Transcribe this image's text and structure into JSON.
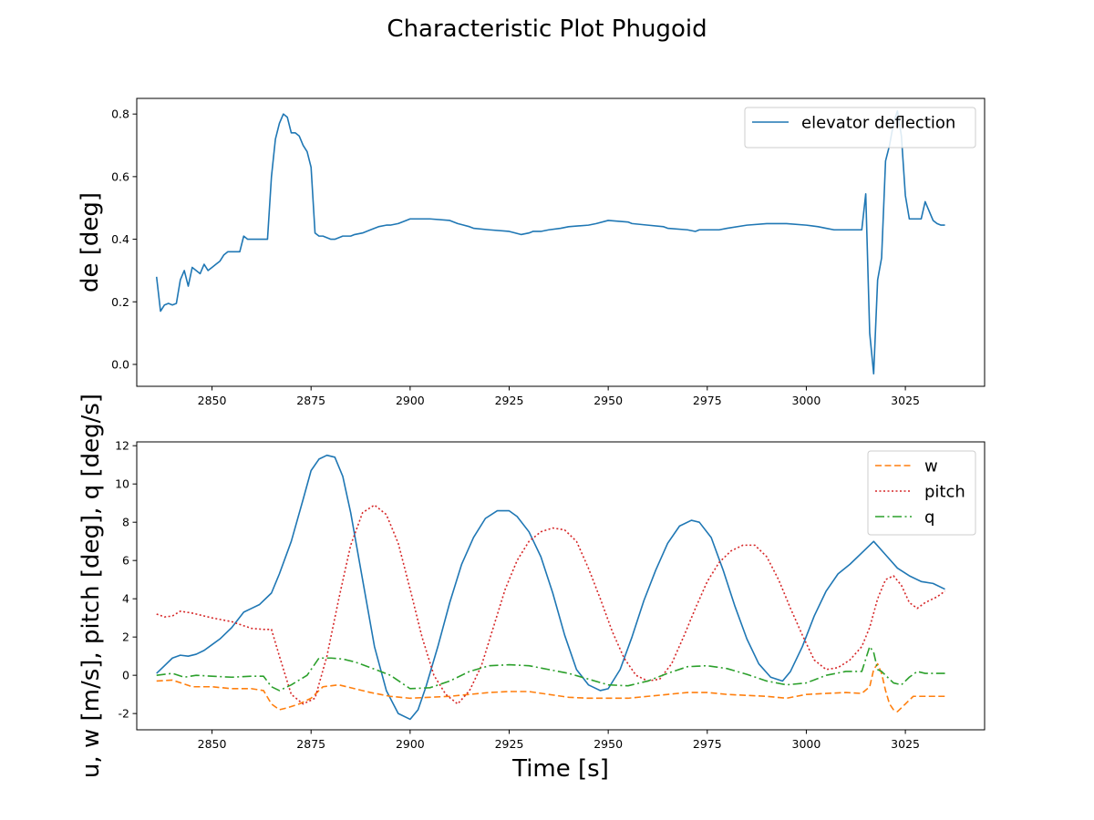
{
  "figure_title": "Characteristic Plot Phugoid",
  "chart_data": [
    {
      "type": "line",
      "title": "",
      "xlabel": "",
      "ylabel": "de [deg]",
      "xlim": [
        2831,
        3045
      ],
      "ylim": [
        -0.07,
        0.85
      ],
      "xticks": [
        2850,
        2875,
        2900,
        2925,
        2950,
        2975,
        3000,
        3025
      ],
      "yticks": [
        0.0,
        0.2,
        0.4,
        0.6,
        0.8
      ],
      "grid": false,
      "legend_position": "top-right",
      "series": [
        {
          "name": "elevator deflection",
          "color": "#1f77b4",
          "style": "solid",
          "x": [
            2836,
            2837,
            2838,
            2839,
            2840,
            2841,
            2842,
            2843,
            2844,
            2845,
            2847,
            2848,
            2849,
            2850,
            2851,
            2852,
            2853,
            2854,
            2855,
            2856,
            2857,
            2858,
            2859,
            2860,
            2861,
            2862,
            2863,
            2864,
            2865,
            2866,
            2867,
            2868,
            2869,
            2870,
            2871,
            2872,
            2873,
            2874,
            2875,
            2876,
            2877,
            2878,
            2879,
            2880,
            2881,
            2882,
            2883,
            2884,
            2885,
            2886,
            2888,
            2890,
            2892,
            2894,
            2895,
            2897,
            2899,
            2900,
            2905,
            2910,
            2912,
            2915,
            2916,
            2920,
            2925,
            2928,
            2930,
            2931,
            2933,
            2935,
            2938,
            2940,
            2945,
            2947,
            2950,
            2955,
            2956,
            2960,
            2964,
            2965,
            2970,
            2972,
            2973,
            2975,
            2977,
            2978,
            2980,
            2985,
            2990,
            2995,
            3000,
            3003,
            3005,
            3007,
            3010,
            3012,
            3014,
            3015,
            3016,
            3017,
            3018,
            3019,
            3020,
            3021,
            3022,
            3023,
            3024,
            3025,
            3026,
            3027,
            3028,
            3029,
            3030,
            3031,
            3032,
            3033,
            3034,
            3035
          ],
          "y": [
            0.28,
            0.17,
            0.19,
            0.195,
            0.19,
            0.195,
            0.27,
            0.3,
            0.25,
            0.31,
            0.29,
            0.32,
            0.3,
            0.31,
            0.32,
            0.33,
            0.35,
            0.36,
            0.36,
            0.36,
            0.36,
            0.41,
            0.4,
            0.4,
            0.4,
            0.4,
            0.4,
            0.4,
            0.6,
            0.72,
            0.77,
            0.8,
            0.79,
            0.74,
            0.74,
            0.73,
            0.7,
            0.68,
            0.63,
            0.42,
            0.41,
            0.41,
            0.405,
            0.4,
            0.4,
            0.405,
            0.41,
            0.41,
            0.41,
            0.415,
            0.42,
            0.43,
            0.44,
            0.445,
            0.445,
            0.45,
            0.46,
            0.465,
            0.465,
            0.46,
            0.45,
            0.44,
            0.435,
            0.43,
            0.425,
            0.415,
            0.42,
            0.425,
            0.425,
            0.43,
            0.435,
            0.44,
            0.445,
            0.45,
            0.46,
            0.455,
            0.45,
            0.445,
            0.44,
            0.435,
            0.43,
            0.425,
            0.43,
            0.43,
            0.43,
            0.43,
            0.435,
            0.445,
            0.45,
            0.45,
            0.445,
            0.44,
            0.435,
            0.43,
            0.43,
            0.43,
            0.43,
            0.545,
            0.1,
            -0.03,
            0.27,
            0.34,
            0.65,
            0.7,
            0.77,
            0.81,
            0.73,
            0.54,
            0.465,
            0.465,
            0.465,
            0.465,
            0.52,
            0.49,
            0.46,
            0.45,
            0.445,
            0.445
          ]
        }
      ]
    },
    {
      "type": "line",
      "title": "",
      "xlabel": "Time [s]",
      "ylabel": "u, w [m/s], pitch [deg], q [deg/s]",
      "xlim": [
        2831,
        3045
      ],
      "ylim": [
        -2.85,
        12.2
      ],
      "xticks": [
        2850,
        2875,
        2900,
        2925,
        2950,
        2975,
        3000,
        3025
      ],
      "yticks": [
        -2,
        0,
        2,
        4,
        6,
        8,
        10,
        12
      ],
      "grid": false,
      "legend_position": "top-right",
      "series": [
        {
          "name": "",
          "color": "#1f77b4",
          "style": "solid",
          "x": [
            2836,
            2838,
            2840,
            2842,
            2844,
            2846,
            2848,
            2850,
            2852,
            2855,
            2858,
            2860,
            2862,
            2865,
            2867,
            2870,
            2873,
            2875,
            2877,
            2879,
            2881,
            2883,
            2885,
            2888,
            2891,
            2894,
            2897,
            2900,
            2902,
            2904,
            2907,
            2910,
            2913,
            2916,
            2919,
            2922,
            2925,
            2927,
            2930,
            2933,
            2936,
            2939,
            2942,
            2945,
            2948,
            2950,
            2953,
            2956,
            2959,
            2962,
            2965,
            2968,
            2971,
            2973,
            2976,
            2979,
            2982,
            2985,
            2988,
            2991,
            2994,
            2996,
            2999,
            3002,
            3005,
            3008,
            3011,
            3014,
            3017,
            3020,
            3023,
            3026,
            3029,
            3032,
            3035
          ],
          "y": [
            0.1,
            0.5,
            0.9,
            1.05,
            1.0,
            1.1,
            1.3,
            1.6,
            1.9,
            2.5,
            3.3,
            3.5,
            3.7,
            4.3,
            5.3,
            7.0,
            9.2,
            10.7,
            11.3,
            11.5,
            11.4,
            10.4,
            8.5,
            5.0,
            1.5,
            -0.8,
            -2.0,
            -2.3,
            -1.8,
            -0.6,
            1.5,
            3.8,
            5.8,
            7.2,
            8.2,
            8.6,
            8.6,
            8.3,
            7.5,
            6.2,
            4.3,
            2.1,
            0.3,
            -0.5,
            -0.8,
            -0.7,
            0.3,
            2.0,
            3.9,
            5.5,
            6.9,
            7.8,
            8.1,
            8.0,
            7.2,
            5.5,
            3.6,
            1.9,
            0.6,
            -0.1,
            -0.3,
            0.2,
            1.5,
            3.1,
            4.4,
            5.3,
            5.8,
            6.4,
            7.0,
            6.3,
            5.6,
            5.2,
            4.9,
            4.8,
            4.5
          ]
        },
        {
          "name": "w",
          "color": "#ff7f0e",
          "style": "dashed",
          "x": [
            2836,
            2840,
            2845,
            2850,
            2855,
            2860,
            2863,
            2865,
            2867,
            2869,
            2872,
            2875,
            2878,
            2882,
            2886,
            2890,
            2895,
            2900,
            2905,
            2910,
            2915,
            2920,
            2925,
            2930,
            2935,
            2940,
            2945,
            2950,
            2955,
            2960,
            2965,
            2970,
            2975,
            2980,
            2985,
            2990,
            2995,
            3000,
            3005,
            3010,
            3014,
            3016,
            3017,
            3018,
            3019,
            3020,
            3021,
            3022,
            3023,
            3025,
            3027,
            3030,
            3035
          ],
          "y": [
            -0.3,
            -0.25,
            -0.6,
            -0.6,
            -0.7,
            -0.7,
            -0.8,
            -1.5,
            -1.8,
            -1.7,
            -1.5,
            -1.2,
            -0.6,
            -0.5,
            -0.7,
            -0.9,
            -1.1,
            -1.2,
            -1.15,
            -1.1,
            -1.0,
            -0.9,
            -0.85,
            -0.85,
            -1.0,
            -1.15,
            -1.2,
            -1.2,
            -1.2,
            -1.1,
            -1.0,
            -0.9,
            -0.9,
            -1.0,
            -1.05,
            -1.1,
            -1.2,
            -1.0,
            -0.95,
            -0.9,
            -0.95,
            -0.6,
            0.3,
            0.6,
            0.1,
            -0.8,
            -1.5,
            -1.8,
            -1.9,
            -1.5,
            -1.1,
            -1.1,
            -1.1
          ]
        },
        {
          "name": "pitch",
          "color": "#d62728",
          "style": "dotted",
          "x": [
            2836,
            2838,
            2840,
            2842,
            2845,
            2850,
            2855,
            2860,
            2863,
            2865,
            2867,
            2870,
            2873,
            2876,
            2879,
            2882,
            2885,
            2888,
            2891,
            2894,
            2897,
            2900,
            2903,
            2906,
            2909,
            2912,
            2915,
            2918,
            2921,
            2924,
            2927,
            2930,
            2933,
            2936,
            2939,
            2942,
            2945,
            2948,
            2951,
            2954,
            2957,
            2960,
            2963,
            2966,
            2969,
            2972,
            2975,
            2978,
            2981,
            2984,
            2987,
            2990,
            2993,
            2996,
            2999,
            3002,
            3005,
            3008,
            3011,
            3014,
            3016,
            3018,
            3020,
            3022,
            3024,
            3026,
            3028,
            3030,
            3033,
            3035
          ],
          "y": [
            3.2,
            3.05,
            3.1,
            3.35,
            3.25,
            3.0,
            2.8,
            2.45,
            2.4,
            2.4,
            1.0,
            -1.0,
            -1.5,
            -1.2,
            1.0,
            4.0,
            6.8,
            8.5,
            8.9,
            8.4,
            6.9,
            4.5,
            2.0,
            0.0,
            -1.0,
            -1.5,
            -0.8,
            0.5,
            2.5,
            4.5,
            6.0,
            7.0,
            7.5,
            7.7,
            7.6,
            7.0,
            5.6,
            4.0,
            2.3,
            0.9,
            0.0,
            -0.3,
            -0.2,
            0.6,
            2.0,
            3.5,
            4.9,
            5.9,
            6.5,
            6.8,
            6.8,
            6.2,
            5.0,
            3.5,
            2.1,
            0.8,
            0.3,
            0.4,
            0.8,
            1.5,
            2.5,
            4.0,
            5.0,
            5.2,
            4.7,
            3.8,
            3.5,
            3.8,
            4.1,
            4.4
          ]
        },
        {
          "name": "q",
          "color": "#2ca02c",
          "style": "dashdot",
          "x": [
            2836,
            2840,
            2843,
            2846,
            2850,
            2855,
            2860,
            2863,
            2865,
            2867,
            2870,
            2874,
            2877,
            2880,
            2883,
            2886,
            2890,
            2895,
            2900,
            2905,
            2910,
            2915,
            2920,
            2925,
            2930,
            2935,
            2940,
            2945,
            2950,
            2955,
            2960,
            2965,
            2970,
            2975,
            2980,
            2985,
            2990,
            2995,
            3000,
            3005,
            3010,
            3014,
            3016,
            3017,
            3018,
            3019,
            3020,
            3021,
            3022,
            3024,
            3026,
            3028,
            3030,
            3035
          ],
          "y": [
            0.0,
            0.1,
            -0.1,
            0.0,
            -0.05,
            -0.1,
            -0.05,
            -0.05,
            -0.6,
            -0.8,
            -0.5,
            0.0,
            0.9,
            0.9,
            0.85,
            0.7,
            0.4,
            0.0,
            -0.7,
            -0.65,
            -0.3,
            0.2,
            0.5,
            0.55,
            0.5,
            0.3,
            0.1,
            -0.2,
            -0.5,
            -0.55,
            -0.3,
            0.1,
            0.45,
            0.5,
            0.35,
            0.05,
            -0.3,
            -0.5,
            -0.4,
            0.0,
            0.2,
            0.2,
            1.5,
            1.2,
            0.3,
            0.2,
            0.0,
            -0.2,
            -0.4,
            -0.5,
            -0.1,
            0.2,
            0.1,
            0.1
          ]
        }
      ]
    }
  ]
}
